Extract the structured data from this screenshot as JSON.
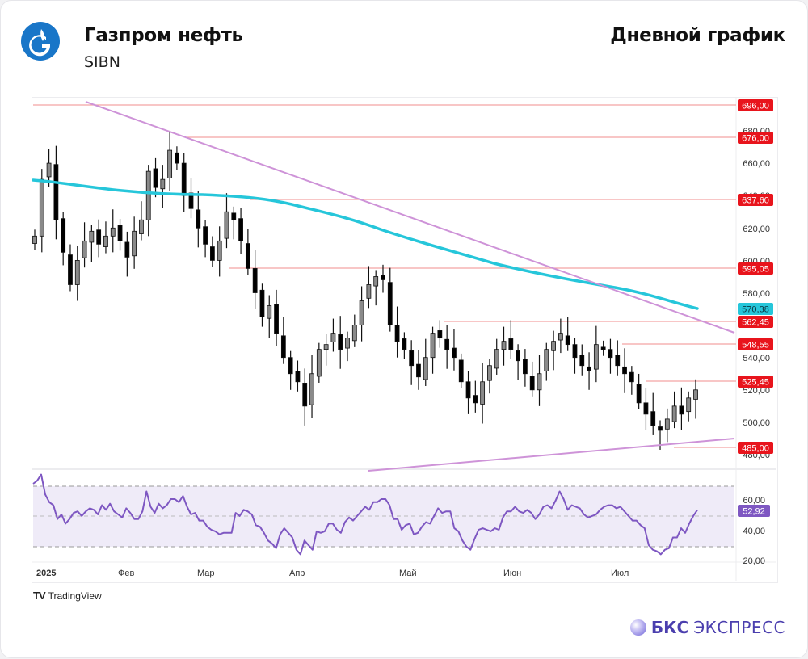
{
  "header": {
    "company_name": "Газпром нефть",
    "ticker": "SIBN",
    "chart_type_label": "Дневной график",
    "logo_icon": "gazprom-flame-g-logo"
  },
  "footer": {
    "tradingview_mark": "TV",
    "tradingview_label": "TradingView",
    "brand_name_bold": "БКС",
    "brand_name_light": "ЭКСПРЕСС"
  },
  "colors": {
    "candle_up": "#8a8a8a",
    "candle_down": "#000000",
    "ma_line": "#26c6da",
    "trendline": "#ce93d8",
    "level_line": "#f28b8b",
    "level_label_bg": "#e8141c",
    "ma_label_bg": "#26c6da",
    "rsi_line": "#7e57c2",
    "rsi_band": "#ede7f6",
    "rsi_label_bg": "#7e57c2"
  },
  "axis": {
    "price_ticks": [
      "680,00",
      "660,00",
      "640,00",
      "620,00",
      "600,00",
      "580,00",
      "540,00",
      "520,00",
      "500,00",
      "480,00"
    ],
    "rsi_ticks": [
      "60,00",
      "40,00",
      "20,00"
    ],
    "time_ticks": [
      "2025",
      "Фев",
      "Мар",
      "Апр",
      "Май",
      "Июн",
      "Июл"
    ]
  },
  "labels": {
    "level_696": "696,00",
    "level_676": "676,00",
    "level_637": "637,60",
    "level_595": "595,05",
    "ma_value": "570,38",
    "level_562": "562,45",
    "level_548": "548,55",
    "level_525": "525,45",
    "level_485": "485,00",
    "rsi_value": "52,92"
  },
  "chart_data": {
    "type": "candlestick",
    "title": "Газпром нефть (SIBN) — Дневной график",
    "xlabel": "",
    "ylabel": "",
    "x_range": [
      "2025-01",
      "2025-07"
    ],
    "ylim": [
      475,
      700
    ],
    "grid": false,
    "time_ticks": [
      "2025",
      "Фев",
      "Мар",
      "Апр",
      "Май",
      "Июн",
      "Июл"
    ],
    "horizontal_levels": [
      696.0,
      676.0,
      637.6,
      595.05,
      562.45,
      548.55,
      525.45,
      485.0
    ],
    "moving_average": {
      "name": "MA",
      "last_value": 570.38,
      "path_approx": [
        [
          "Jan-start",
          650
        ],
        [
          "Feb-mid",
          641
        ],
        [
          "Mar-start",
          640
        ],
        [
          "Apr-start",
          632
        ],
        [
          "May-start",
          617
        ],
        [
          "Jun-start",
          598
        ],
        [
          "Jul-start",
          585
        ],
        [
          "Jul-end",
          570.38
        ]
      ]
    },
    "trendlines": [
      {
        "name": "descending resistance",
        "from": [
          "Jan-mid",
          700
        ],
        "to": [
          "Jul-end",
          555
        ]
      },
      {
        "name": "ascending support",
        "from": [
          "Apr-start",
          475
        ],
        "to": [
          "Jul-end",
          490
        ]
      }
    ],
    "close_approx": [
      615,
      650,
      660,
      625,
      605,
      585,
      600,
      612,
      618,
      610,
      615,
      620,
      612,
      602,
      618,
      625,
      655,
      645,
      650,
      668,
      660,
      640,
      632,
      620,
      610,
      600,
      612,
      630,
      625,
      612,
      595,
      580,
      565,
      572,
      555,
      540,
      530,
      525,
      510,
      530,
      545,
      548,
      555,
      545,
      552,
      560,
      575,
      585,
      590,
      588,
      560,
      550,
      545,
      535,
      528,
      540,
      555,
      552,
      545,
      540,
      525,
      515,
      512,
      525,
      535,
      545,
      550,
      545,
      538,
      530,
      520,
      530,
      545,
      550,
      555,
      548,
      540,
      535,
      532,
      548,
      545,
      540,
      535,
      530,
      525,
      512,
      505,
      498,
      495,
      502,
      510,
      505,
      515,
      520
    ],
    "rsi": {
      "name": "RSI",
      "last_value": 52.92,
      "upper_band": 70,
      "middle": 50,
      "lower_band": 30,
      "ylim": [
        18,
        78
      ],
      "values_approx": [
        70,
        72,
        76,
        63,
        58,
        56,
        47,
        50,
        44,
        47,
        51,
        52,
        49,
        52,
        54,
        53,
        50,
        56,
        53,
        57,
        52,
        50,
        48,
        54,
        51,
        47,
        47,
        52,
        65,
        55,
        51,
        57,
        54,
        56,
        60,
        60,
        58,
        62,
        55,
        50,
        51,
        46,
        46,
        42,
        40,
        39,
        37,
        38,
        38,
        38,
        51,
        49,
        53,
        52,
        50,
        43,
        42,
        38,
        33,
        31,
        28,
        37,
        41,
        38,
        35,
        27,
        24,
        33,
        30,
        27,
        39,
        38,
        39,
        44,
        44,
        40,
        38,
        45,
        48,
        46,
        49,
        52,
        55,
        53,
        58,
        58,
        60,
        60,
        56,
        47,
        47,
        40,
        43,
        44,
        37,
        38,
        42,
        45,
        44,
        49,
        54,
        51,
        52,
        52,
        41,
        39,
        33,
        29,
        27,
        34,
        40,
        41,
        40,
        39,
        41,
        40,
        48,
        52,
        52,
        55,
        52,
        51,
        53,
        51,
        47,
        50,
        55,
        56,
        54,
        59,
        65,
        60,
        53,
        56,
        55,
        54,
        50,
        48,
        49,
        50,
        53,
        55,
        56,
        56,
        54,
        55,
        52,
        49,
        46,
        46,
        43,
        41,
        30,
        27,
        26,
        24,
        27,
        28,
        35,
        35,
        41,
        38,
        44,
        49,
        52.92
      ]
    },
    "rsi_ticks": [
      "60,00",
      "40,00",
      "20,00"
    ]
  }
}
